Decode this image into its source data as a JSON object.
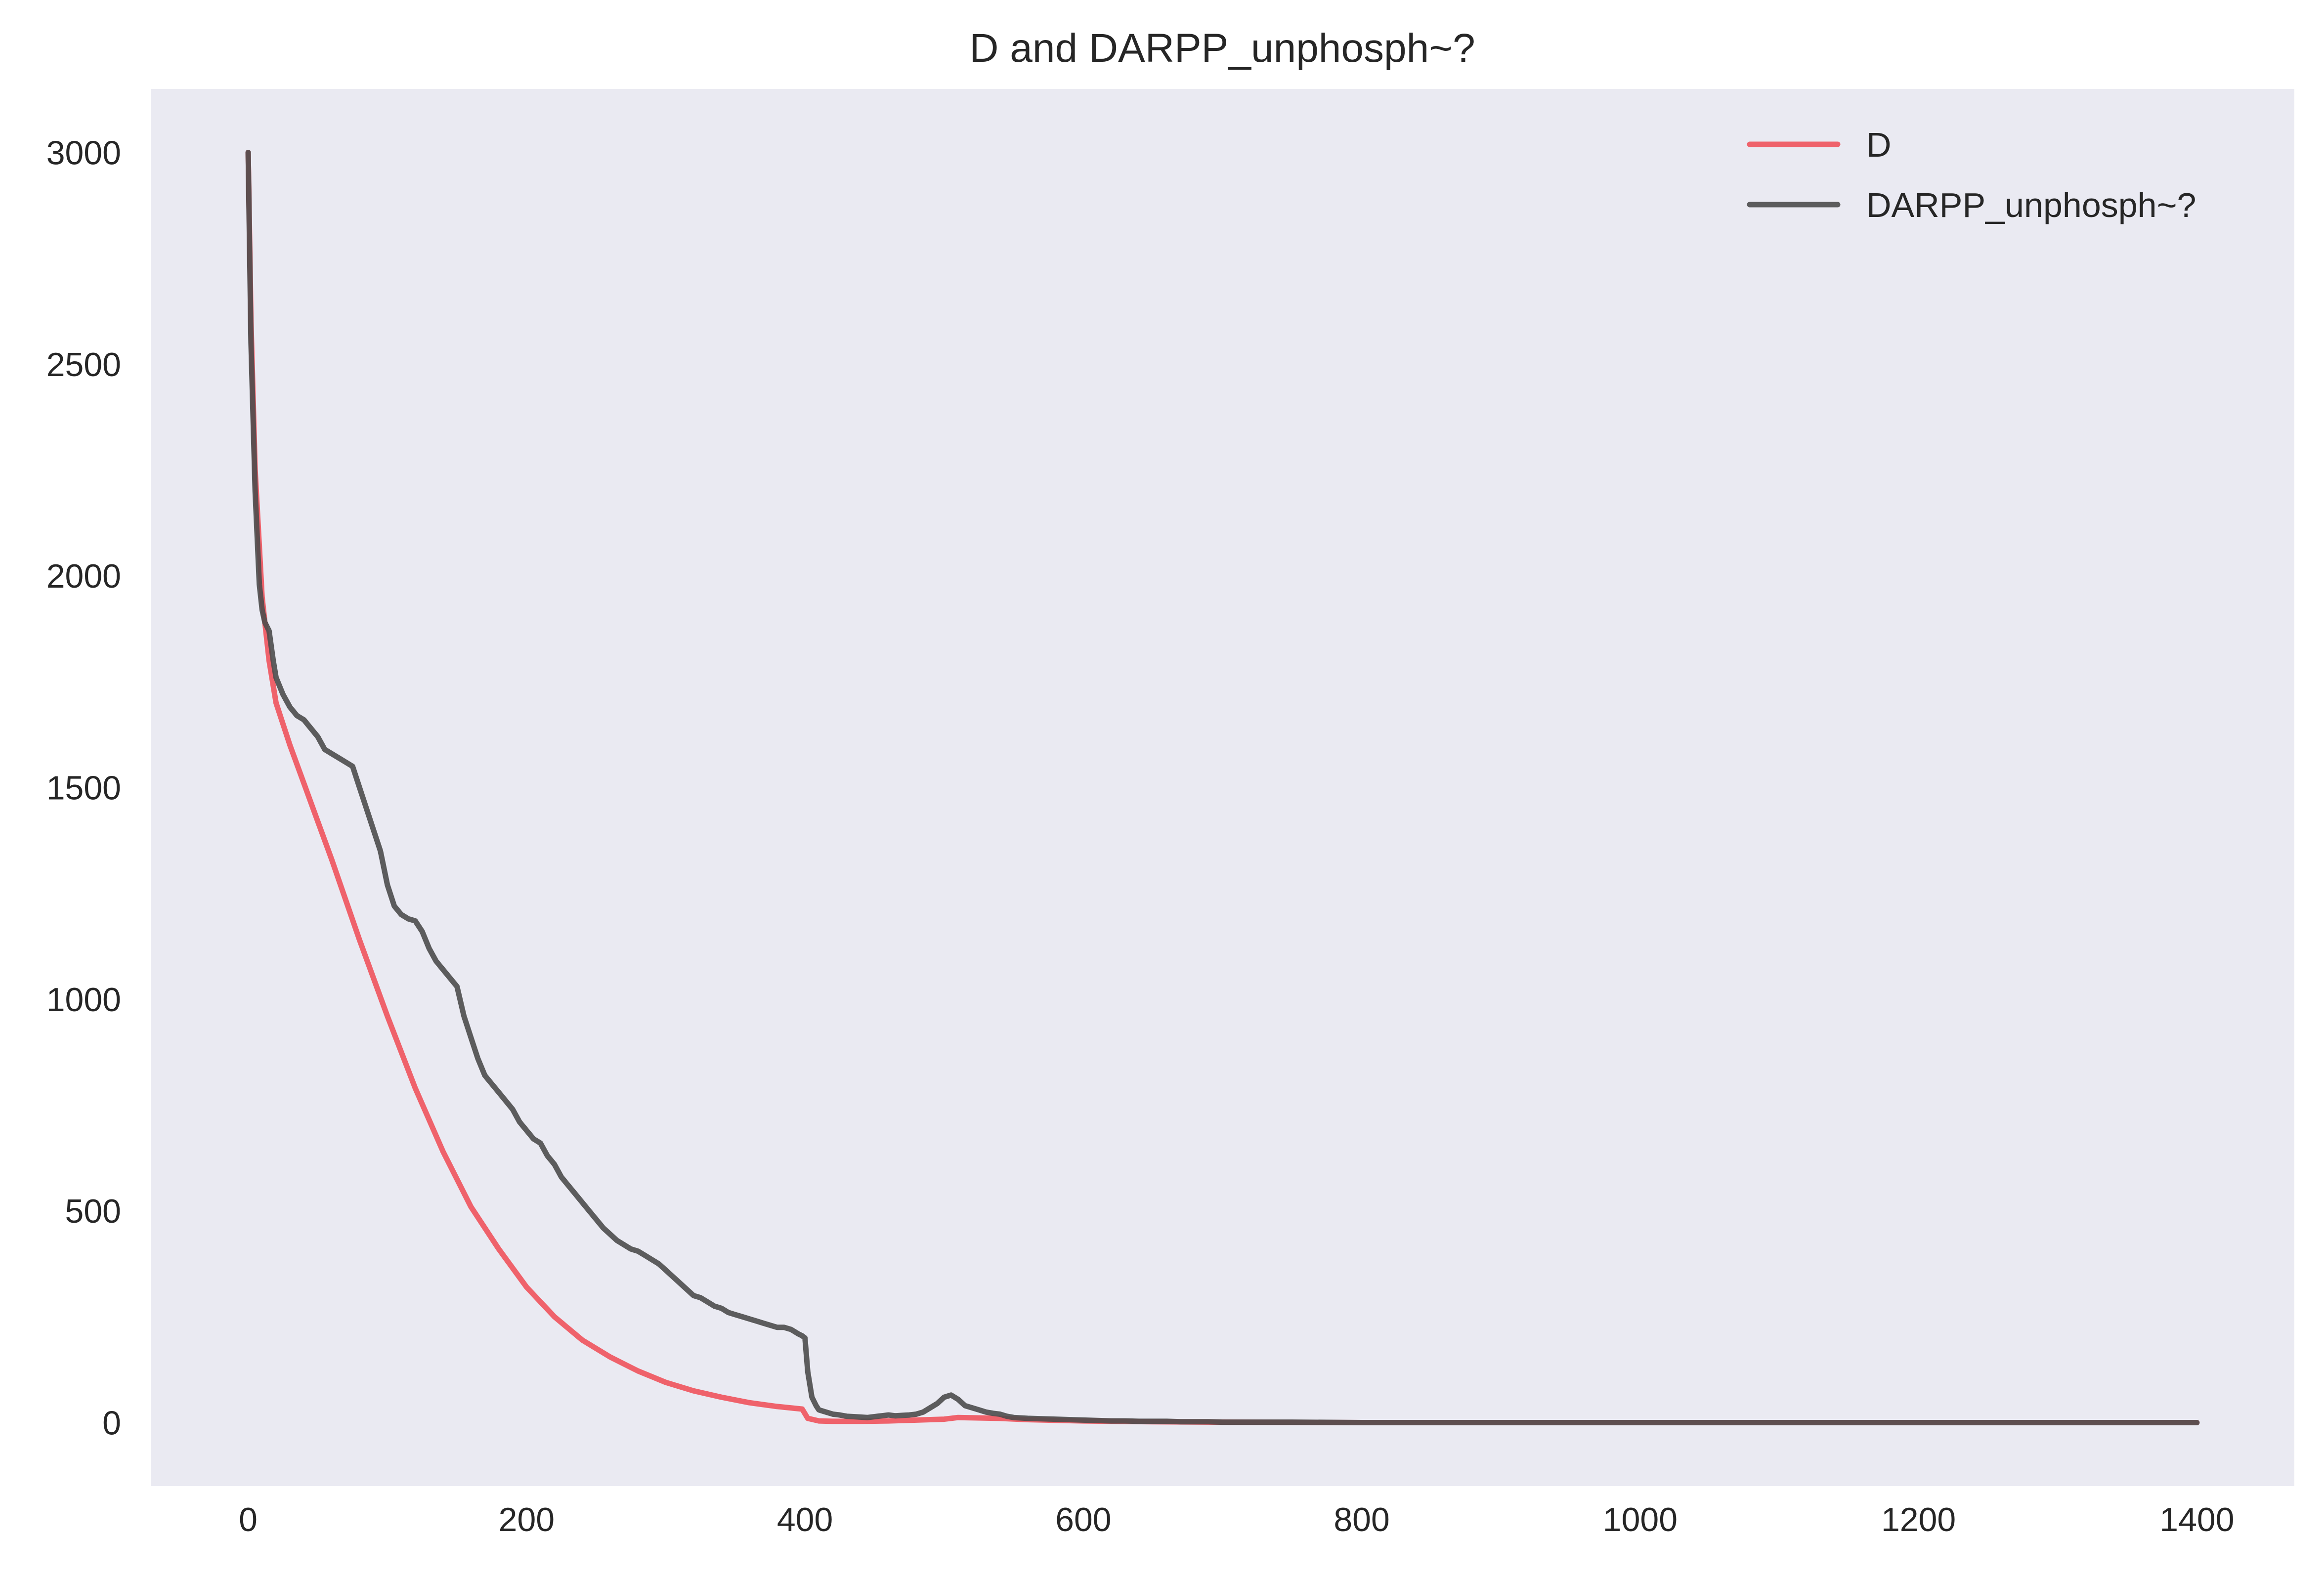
{
  "chart_data": {
    "type": "line",
    "title": "D and DARPP_unphosph~?",
    "xlabel": "",
    "ylabel": "",
    "xlim": [
      -70,
      1470
    ],
    "ylim": [
      -150,
      3150
    ],
    "x_ticks": [
      0,
      200,
      400,
      600,
      800,
      1000,
      1200,
      1400
    ],
    "y_ticks": [
      0,
      500,
      1000,
      1500,
      2000,
      2500,
      3000
    ],
    "grid": false,
    "background": "#eaeaf2",
    "legend_position": "top-right",
    "series": [
      {
        "name": "D",
        "color": "#f0535c",
        "x": [
          0,
          2,
          5,
          10,
          15,
          20,
          30,
          40,
          50,
          60,
          80,
          100,
          120,
          140,
          160,
          180,
          200,
          220,
          240,
          260,
          280,
          300,
          320,
          340,
          360,
          380,
          398,
          402,
          410,
          420,
          440,
          460,
          480,
          500,
          510,
          540,
          560,
          600,
          650,
          700,
          800,
          1000,
          1200,
          1400
        ],
        "y": [
          3000,
          2600,
          2250,
          1950,
          1800,
          1700,
          1600,
          1510,
          1420,
          1330,
          1140,
          960,
          790,
          640,
          510,
          410,
          320,
          250,
          195,
          155,
          122,
          95,
          75,
          60,
          47,
          38,
          32,
          10,
          4,
          3,
          3,
          4,
          6,
          8,
          12,
          10,
          7,
          4,
          2,
          1,
          0,
          0,
          0,
          0
        ]
      },
      {
        "name": "DARPP_unphosph~?",
        "color": "#4c4c4c",
        "x": [
          0,
          2,
          5,
          8,
          10,
          12,
          15,
          18,
          20,
          25,
          30,
          35,
          40,
          45,
          50,
          55,
          60,
          65,
          70,
          75,
          80,
          85,
          90,
          95,
          100,
          105,
          110,
          115,
          120,
          125,
          130,
          135,
          140,
          145,
          150,
          155,
          160,
          165,
          170,
          175,
          180,
          185,
          190,
          195,
          200,
          205,
          210,
          215,
          220,
          225,
          230,
          235,
          240,
          245,
          250,
          255,
          260,
          265,
          270,
          275,
          280,
          285,
          290,
          295,
          300,
          305,
          310,
          315,
          320,
          325,
          330,
          335,
          340,
          345,
          350,
          355,
          360,
          365,
          370,
          375,
          380,
          385,
          390,
          395,
          398,
          400,
          402,
          405,
          408,
          410,
          415,
          420,
          425,
          430,
          435,
          440,
          445,
          450,
          455,
          460,
          465,
          470,
          475,
          480,
          485,
          490,
          495,
          500,
          505,
          510,
          515,
          520,
          525,
          530,
          535,
          540,
          545,
          550,
          560,
          570,
          580,
          590,
          600,
          610,
          620,
          630,
          640,
          650,
          660,
          670,
          680,
          690,
          700,
          750,
          800,
          1000,
          1200,
          1400
        ],
        "y": [
          3000,
          2550,
          2200,
          1980,
          1920,
          1890,
          1870,
          1800,
          1760,
          1720,
          1690,
          1670,
          1660,
          1640,
          1620,
          1590,
          1580,
          1570,
          1560,
          1550,
          1500,
          1450,
          1400,
          1350,
          1270,
          1220,
          1200,
          1190,
          1185,
          1160,
          1120,
          1090,
          1070,
          1050,
          1030,
          960,
          910,
          860,
          820,
          800,
          780,
          760,
          740,
          710,
          690,
          670,
          660,
          630,
          610,
          580,
          560,
          540,
          520,
          500,
          480,
          460,
          445,
          430,
          420,
          410,
          405,
          395,
          385,
          375,
          360,
          345,
          330,
          315,
          300,
          295,
          285,
          275,
          270,
          260,
          255,
          250,
          245,
          240,
          235,
          230,
          225,
          225,
          220,
          210,
          205,
          200,
          120,
          60,
          40,
          30,
          25,
          20,
          18,
          15,
          14,
          13,
          12,
          14,
          16,
          18,
          16,
          17,
          18,
          20,
          25,
          35,
          45,
          60,
          65,
          55,
          40,
          35,
          30,
          25,
          22,
          20,
          15,
          12,
          10,
          9,
          8,
          7,
          6,
          5,
          4,
          4,
          3,
          3,
          3,
          2,
          2,
          2,
          1,
          1,
          0,
          0,
          0,
          0
        ]
      }
    ]
  }
}
